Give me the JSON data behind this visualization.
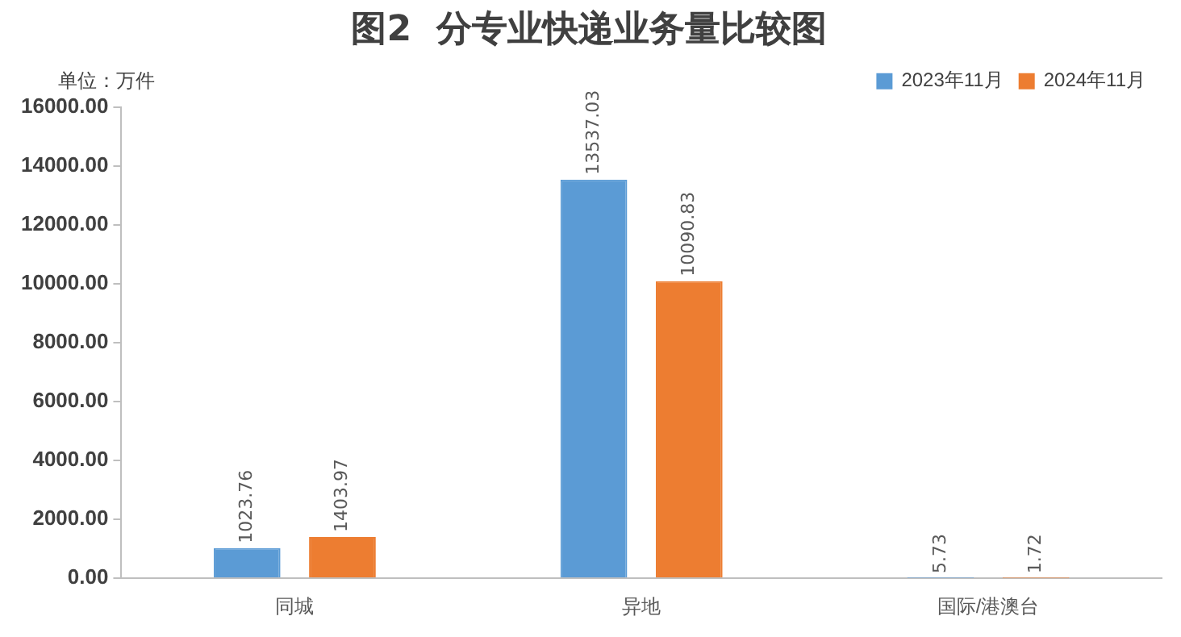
{
  "chart_data": {
    "type": "bar",
    "title": "图2  分专业快递业务量比较图",
    "annotations": [
      "单位：万件"
    ],
    "categories": [
      "同城",
      "异地",
      "国际/港澳台"
    ],
    "series": [
      {
        "name": "2023年11月",
        "color": "#5b9bd5",
        "values": [
          1023.76,
          13537.03,
          5.73
        ]
      },
      {
        "name": "2024年11月",
        "color": "#ed7d31",
        "values": [
          1403.97,
          10090.83,
          1.72
        ]
      }
    ],
    "ylim": [
      0,
      16000
    ],
    "yticks": [
      {
        "value": 0,
        "label": "0.00"
      },
      {
        "value": 2000,
        "label": "2000.00"
      },
      {
        "value": 4000,
        "label": "4000.00"
      },
      {
        "value": 6000,
        "label": "6000.00"
      },
      {
        "value": 8000,
        "label": "8000.00"
      },
      {
        "value": 10000,
        "label": "10000.00"
      },
      {
        "value": 12000,
        "label": "12000.00"
      },
      {
        "value": 14000,
        "label": "14000.00"
      },
      {
        "value": 16000,
        "label": "16000.00"
      }
    ],
    "grid": false,
    "legend": "top right",
    "data_labels": true
  }
}
